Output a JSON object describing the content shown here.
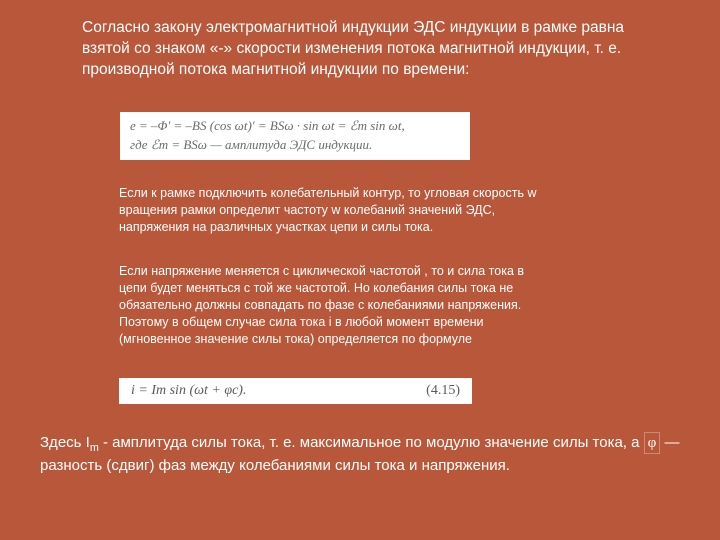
{
  "para1": "Согласно закону электромагнитной индукции ЭДС индукции в рамке равна взятой со знаком «-» скорости изменения потока магнитной индукции, т. е. производной потока магнитной индукции по времени:",
  "formula1_line1": "e = –Φ′ = –BS (cos ωt)′ = BSω · sin ωt = ℰm sin ωt,",
  "formula1_line2": "где ℰm = BSω — амплитуда ЭДС индукции.",
  "para2": "Если к рамке подключить колебательный контур,  то угловая скорость  w вращения рамки определит  частоту  w колебаний значений ЭДС, напряжения на различных участках цепи и силы тока.",
  "para3": "Если напряжение меняется с циклической частотой , то и сила тока в цепи будет меняться с той же частотой. Но колебания силы тока не обязательно должны совпадать по фазе с колебаниями напряжения. Поэтому в общем случае сила тока i в любой момент времени (мгновенное значение силы тока) определяется по формуле",
  "formula2": "i = Im sin (ωt + φc).",
  "formula2_num": "(4.15)",
  "para4_a": "Здесь I",
  "para4_sub": "m",
  "para4_b": " - амплитуда силы тока, т. е. максимальное по модулю значение силы тока, а ",
  "para4_phi": "φ",
  "para4_c": " — разность (сдвиг) фаз между колебаниями силы тока и напряжения.",
  "colors": {
    "background": "#b8573a",
    "text": "#ffffff",
    "formula_bg": "#ffffff",
    "formula_text": "#6a6a6a"
  },
  "typography": {
    "main_font": "Arial",
    "formula_font": "Times New Roman",
    "para1_fontsize": 15.5,
    "mid_fontsize": 12.5,
    "bottom_fontsize": 15,
    "formula_fontsize": 13
  }
}
